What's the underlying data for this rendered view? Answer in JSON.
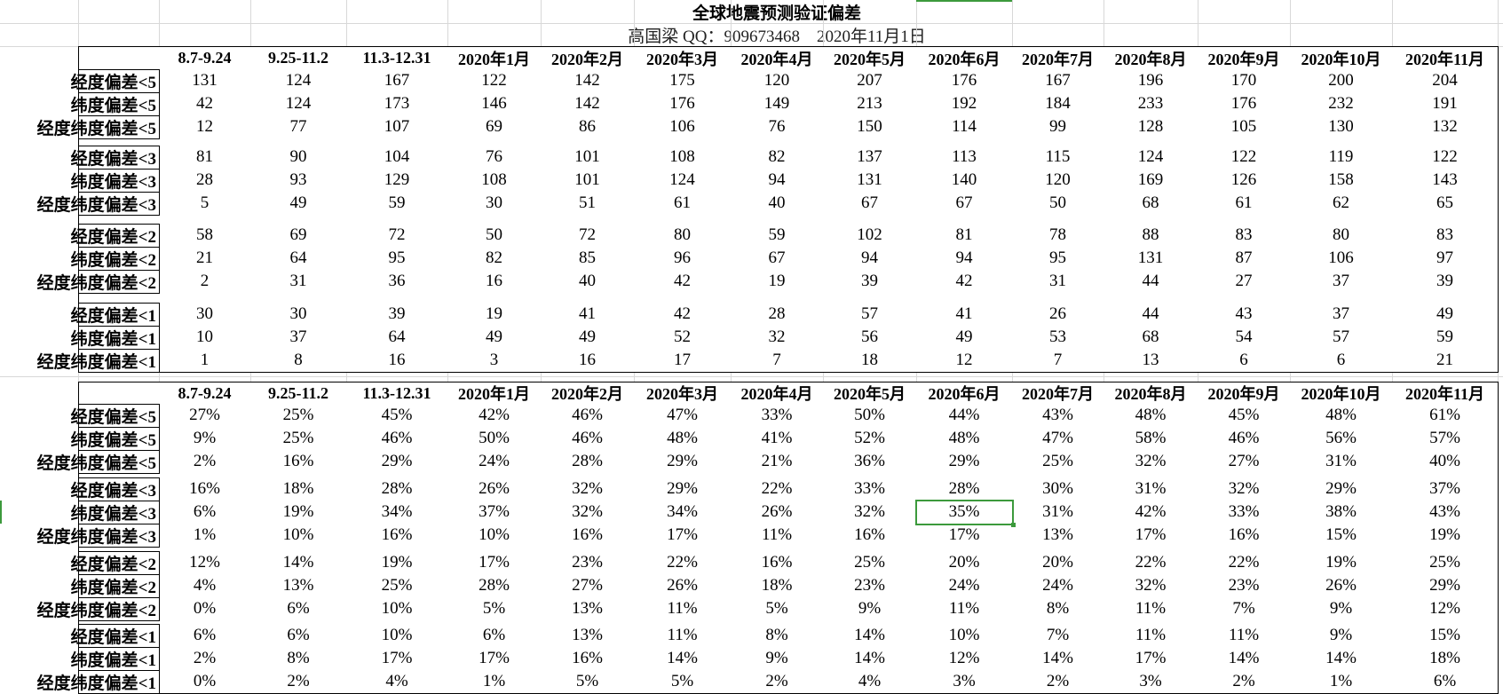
{
  "sheet": {
    "title": "全球地震预测验证偏差",
    "subtitle": "高国梁 QQ：909673468　2020年11月1日",
    "selection_color": "#3c9a3c",
    "selected_cell": {
      "table": "percent",
      "row_label": "纬度偏差<3",
      "column": "2020年6月",
      "value": "35%"
    }
  },
  "columns": [
    "8.7-9.24",
    "9.25-11.2",
    "11.3-12.31",
    "2020年1月",
    "2020年2月",
    "2020年3月",
    "2020年4月",
    "2020年5月",
    "2020年6月",
    "2020年7月",
    "2020年8月",
    "2020年9月",
    "2020年10月",
    "2020年11月"
  ],
  "counts": {
    "groups": [
      {
        "rows": [
          {
            "label": "经度偏差<5",
            "values": [
              "131",
              "124",
              "167",
              "122",
              "142",
              "175",
              "120",
              "207",
              "176",
              "167",
              "196",
              "170",
              "200",
              "204"
            ]
          },
          {
            "label": "纬度偏差<5",
            "values": [
              "42",
              "124",
              "173",
              "146",
              "142",
              "176",
              "149",
              "213",
              "192",
              "184",
              "233",
              "176",
              "232",
              "191"
            ]
          },
          {
            "label": "经度纬度偏差<5",
            "values": [
              "12",
              "77",
              "107",
              "69",
              "86",
              "106",
              "76",
              "150",
              "114",
              "99",
              "128",
              "105",
              "130",
              "132"
            ]
          }
        ]
      },
      {
        "rows": [
          {
            "label": "经度偏差<3",
            "values": [
              "81",
              "90",
              "104",
              "76",
              "101",
              "108",
              "82",
              "137",
              "113",
              "115",
              "124",
              "122",
              "119",
              "122"
            ]
          },
          {
            "label": "纬度偏差<3",
            "values": [
              "28",
              "93",
              "129",
              "108",
              "101",
              "124",
              "94",
              "131",
              "140",
              "120",
              "169",
              "126",
              "158",
              "143"
            ]
          },
          {
            "label": "经度纬度偏差<3",
            "values": [
              "5",
              "49",
              "59",
              "30",
              "51",
              "61",
              "40",
              "67",
              "67",
              "50",
              "68",
              "61",
              "62",
              "65"
            ]
          }
        ]
      },
      {
        "rows": [
          {
            "label": "经度偏差<2",
            "values": [
              "58",
              "69",
              "72",
              "50",
              "72",
              "80",
              "59",
              "102",
              "81",
              "78",
              "88",
              "83",
              "80",
              "83"
            ]
          },
          {
            "label": "纬度偏差<2",
            "values": [
              "21",
              "64",
              "95",
              "82",
              "85",
              "96",
              "67",
              "94",
              "94",
              "95",
              "131",
              "87",
              "106",
              "97"
            ]
          },
          {
            "label": "经度纬度偏差<2",
            "values": [
              "2",
              "31",
              "36",
              "16",
              "40",
              "42",
              "19",
              "39",
              "42",
              "31",
              "44",
              "27",
              "37",
              "39"
            ]
          }
        ]
      },
      {
        "rows": [
          {
            "label": "经度偏差<1",
            "values": [
              "30",
              "30",
              "39",
              "19",
              "41",
              "42",
              "28",
              "57",
              "41",
              "26",
              "44",
              "43",
              "37",
              "49"
            ]
          },
          {
            "label": "纬度偏差<1",
            "values": [
              "10",
              "37",
              "64",
              "49",
              "49",
              "52",
              "32",
              "56",
              "49",
              "53",
              "68",
              "54",
              "57",
              "59"
            ]
          },
          {
            "label": "经度纬度偏差<1",
            "values": [
              "1",
              "8",
              "16",
              "3",
              "16",
              "17",
              "7",
              "18",
              "12",
              "7",
              "13",
              "6",
              "6",
              "21"
            ]
          }
        ]
      }
    ]
  },
  "percent": {
    "groups": [
      {
        "rows": [
          {
            "label": "经度偏差<5",
            "values": [
              "27%",
              "25%",
              "45%",
              "42%",
              "46%",
              "47%",
              "33%",
              "50%",
              "44%",
              "43%",
              "48%",
              "45%",
              "48%",
              "61%"
            ]
          },
          {
            "label": "纬度偏差<5",
            "values": [
              "9%",
              "25%",
              "46%",
              "50%",
              "46%",
              "48%",
              "41%",
              "52%",
              "48%",
              "47%",
              "58%",
              "46%",
              "56%",
              "57%"
            ]
          },
          {
            "label": "经度纬度偏差<5",
            "values": [
              "2%",
              "16%",
              "29%",
              "24%",
              "28%",
              "29%",
              "21%",
              "36%",
              "29%",
              "25%",
              "32%",
              "27%",
              "31%",
              "40%"
            ]
          }
        ]
      },
      {
        "rows": [
          {
            "label": "经度偏差<3",
            "values": [
              "16%",
              "18%",
              "28%",
              "26%",
              "32%",
              "29%",
              "22%",
              "33%",
              "28%",
              "30%",
              "31%",
              "32%",
              "29%",
              "37%"
            ]
          },
          {
            "label": "纬度偏差<3",
            "values": [
              "6%",
              "19%",
              "34%",
              "37%",
              "32%",
              "34%",
              "26%",
              "32%",
              "35%",
              "31%",
              "42%",
              "33%",
              "38%",
              "43%"
            ]
          },
          {
            "label": "经度纬度偏差<3",
            "values": [
              "1%",
              "10%",
              "16%",
              "10%",
              "16%",
              "17%",
              "11%",
              "16%",
              "17%",
              "13%",
              "17%",
              "16%",
              "15%",
              "19%"
            ]
          }
        ]
      },
      {
        "rows": [
          {
            "label": "经度偏差<2",
            "values": [
              "12%",
              "14%",
              "19%",
              "17%",
              "23%",
              "22%",
              "16%",
              "25%",
              "20%",
              "20%",
              "22%",
              "22%",
              "19%",
              "25%"
            ]
          },
          {
            "label": "纬度偏差<2",
            "values": [
              "4%",
              "13%",
              "25%",
              "28%",
              "27%",
              "26%",
              "18%",
              "23%",
              "24%",
              "24%",
              "32%",
              "23%",
              "26%",
              "29%"
            ]
          },
          {
            "label": "经度纬度偏差<2",
            "values": [
              "0%",
              "6%",
              "10%",
              "5%",
              "13%",
              "11%",
              "5%",
              "9%",
              "11%",
              "8%",
              "11%",
              "7%",
              "9%",
              "12%"
            ]
          }
        ]
      },
      {
        "rows": [
          {
            "label": "经度偏差<1",
            "values": [
              "6%",
              "6%",
              "10%",
              "6%",
              "13%",
              "11%",
              "8%",
              "14%",
              "10%",
              "7%",
              "11%",
              "11%",
              "9%",
              "15%"
            ]
          },
          {
            "label": "纬度偏差<1",
            "values": [
              "2%",
              "8%",
              "17%",
              "17%",
              "16%",
              "14%",
              "9%",
              "14%",
              "12%",
              "14%",
              "17%",
              "14%",
              "14%",
              "18%"
            ]
          },
          {
            "label": "经度纬度偏差<1",
            "values": [
              "0%",
              "2%",
              "4%",
              "1%",
              "5%",
              "5%",
              "2%",
              "4%",
              "3%",
              "2%",
              "3%",
              "2%",
              "1%",
              "6%"
            ]
          }
        ]
      }
    ]
  }
}
